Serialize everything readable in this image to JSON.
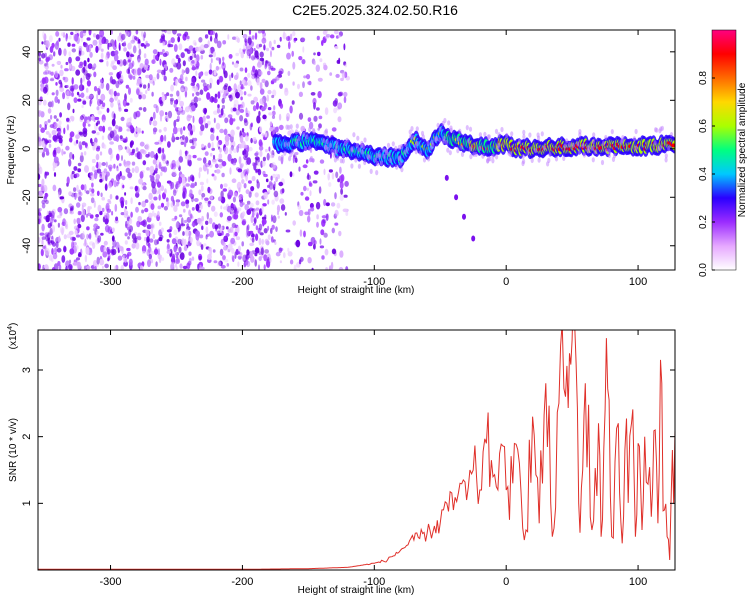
{
  "title": "C2E5.2025.324.02.50.R16",
  "chart_data": [
    {
      "type": "heatmap",
      "xlabel": "Height of straight line (km)",
      "ylabel": "Frequency (Hz)",
      "xlim": [
        -355,
        128
      ],
      "ylim": [
        -50,
        49
      ],
      "xticks": [
        -300,
        -200,
        -100,
        0,
        100
      ],
      "yticks": [
        -40,
        -20,
        0,
        20,
        40
      ],
      "xtick_labels": [
        "-300",
        "-200",
        "-100",
        "0",
        "100"
      ],
      "ytick_labels": [
        "-40",
        "-20",
        "0",
        "20",
        "40"
      ],
      "colorbar": {
        "label": "Normalized spectral amplitude",
        "range": [
          0,
          1
        ],
        "ticks": [
          0.0,
          0.2,
          0.4,
          0.6,
          0.8
        ],
        "tick_labels": [
          "0.0",
          "0.2",
          "0.4",
          "0.6",
          "0.8"
        ],
        "colors": [
          "#ffffff",
          "#e6a8ff",
          "#9b2cff",
          "#2a00ff",
          "#00c8ff",
          "#00ff80",
          "#aaff00",
          "#ffd800",
          "#ff6a00",
          "#ff0000",
          "#ff0080"
        ]
      },
      "noise_region_x": [
        -355,
        -140
      ],
      "signal_ridge": {
        "x": [
          -175,
          -150,
          -125,
          -100,
          -80,
          -70,
          -60,
          -50,
          -40,
          -25,
          -10,
          0,
          10,
          50,
          100,
          128
        ],
        "y": [
          2,
          3,
          0,
          -3,
          -4,
          4,
          -1,
          7,
          4,
          1,
          1,
          2,
          0,
          1,
          1,
          2
        ],
        "amplitude": [
          0.4,
          0.5,
          0.45,
          0.55,
          0.5,
          0.6,
          0.55,
          0.6,
          0.7,
          0.8,
          0.75,
          0.85,
          0.9,
          0.9,
          0.9,
          0.85
        ]
      },
      "branch": {
        "x": [
          -45,
          -38,
          -32,
          -25
        ],
        "y": [
          -12,
          -20,
          -28,
          -37
        ]
      }
    },
    {
      "type": "line",
      "xlabel": "Height of straight line (km)",
      "ylabel": "SNR (10 * v/v)",
      "y_multiplier": "(x10",
      "y_multiplier_exp": "4",
      "y_multiplier_close": ")",
      "xlim": [
        -355,
        128
      ],
      "ylim": [
        0,
        3.6
      ],
      "xticks": [
        -300,
        -200,
        -100,
        0,
        100
      ],
      "yticks": [
        1,
        2,
        3
      ],
      "xtick_labels": [
        "-300",
        "-200",
        "-100",
        "0",
        "100"
      ],
      "ytick_labels": [
        "1",
        "2",
        "3"
      ],
      "color": "#e0302a",
      "series": [
        {
          "x": [
            -355,
            -300,
            -250,
            -200,
            -150,
            -120,
            -100,
            -90,
            -80,
            -70,
            -60,
            -50,
            -45,
            -40,
            -35,
            -30,
            -25,
            -20,
            -15,
            -10,
            -5,
            0,
            5,
            10,
            15,
            20,
            25,
            30,
            35,
            40,
            45,
            48,
            50,
            53,
            55,
            58,
            60,
            65,
            70,
            72,
            75,
            78,
            80,
            85,
            88,
            90,
            95,
            98,
            100,
            103,
            105,
            110,
            113,
            115,
            118,
            120,
            122,
            124,
            126,
            128
          ],
          "y": [
            0.01,
            0.01,
            0.01,
            0.01,
            0.02,
            0.04,
            0.1,
            0.15,
            0.3,
            0.45,
            0.55,
            0.7,
            1.0,
            0.9,
            1.3,
            1.05,
            1.5,
            1.2,
            1.9,
            1.4,
            1.75,
            1.2,
            1.3,
            1.6,
            0.6,
            2.3,
            0.7,
            2.8,
            0.5,
            2.5,
            2.6,
            3.25,
            3.45,
            3.1,
            1.0,
            1.5,
            2.8,
            0.6,
            2.2,
            0.5,
            2.4,
            2.55,
            0.5,
            2.2,
            0.4,
            1.8,
            2.2,
            0.5,
            1.9,
            0.6,
            2.0,
            0.8,
            2.1,
            0.7,
            2.8,
            0.9,
            0.5,
            0.15,
            1.8,
            2.1
          ]
        }
      ]
    }
  ]
}
